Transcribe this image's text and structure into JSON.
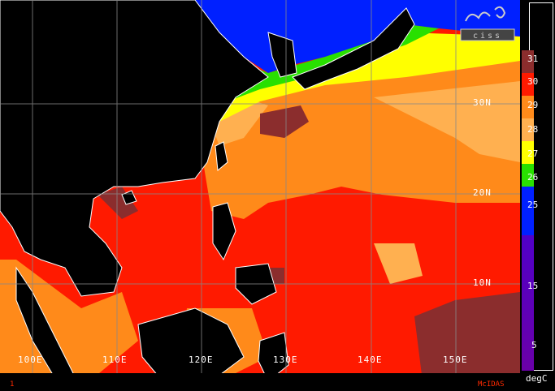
{
  "map": {
    "lat_labels": [
      {
        "text": "30N",
        "lat": 30
      },
      {
        "text": "20N",
        "lat": 20
      },
      {
        "text": "10N",
        "lat": 10
      }
    ],
    "lon_labels": [
      {
        "text": "100E",
        "lon": 100
      },
      {
        "text": "110E",
        "lon": 110
      },
      {
        "text": "120E",
        "lon": 120
      },
      {
        "text": "130E",
        "lon": 130
      },
      {
        "text": "140E",
        "lon": 140
      },
      {
        "text": "150E",
        "lon": 150
      }
    ],
    "footer_left": "1",
    "footer_right": "McIDAS",
    "logo_text": "ciss"
  },
  "colorbar": {
    "unit": "degC",
    "labels": [
      "31",
      "30",
      "29",
      "28",
      "27",
      "26",
      "25",
      "15",
      "5"
    ],
    "colors": {
      "31": "#8b2d2d",
      "30": "#ff1a00",
      "29": "#ff8a1a",
      "28": "#ffb050",
      "27": "#ffff00",
      "26": "#29e000",
      "25": "#0020ff",
      "15": "#7a00c0",
      "5": "#6a00a8"
    }
  }
}
